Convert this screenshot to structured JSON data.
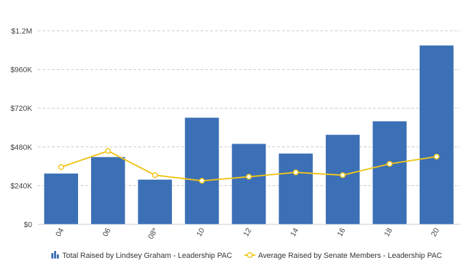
{
  "chart_data": {
    "type": "bar",
    "categories": [
      "04",
      "06",
      "08*",
      "10",
      "12",
      "14",
      "16",
      "18",
      "20"
    ],
    "series": [
      {
        "name": "Total Raised by Lindsey Graham - Leadership PAC",
        "kind": "bar",
        "color": "#3c70b6",
        "values": [
          316000,
          418000,
          278000,
          662000,
          500000,
          440000,
          556000,
          640000,
          1110000
        ]
      },
      {
        "name": "Average Raised by Senate Members - Leadership PAC",
        "kind": "line",
        "color": "#f0c419",
        "values": [
          355000,
          455000,
          305000,
          270000,
          295000,
          322000,
          305000,
          375000,
          420000
        ]
      }
    ],
    "yticks": [
      "$0",
      "$240K",
      "$480K",
      "$720K",
      "$960K",
      "$1.2M"
    ],
    "ylim": [
      0,
      1200000
    ],
    "grid": true,
    "legend": "bottom"
  }
}
